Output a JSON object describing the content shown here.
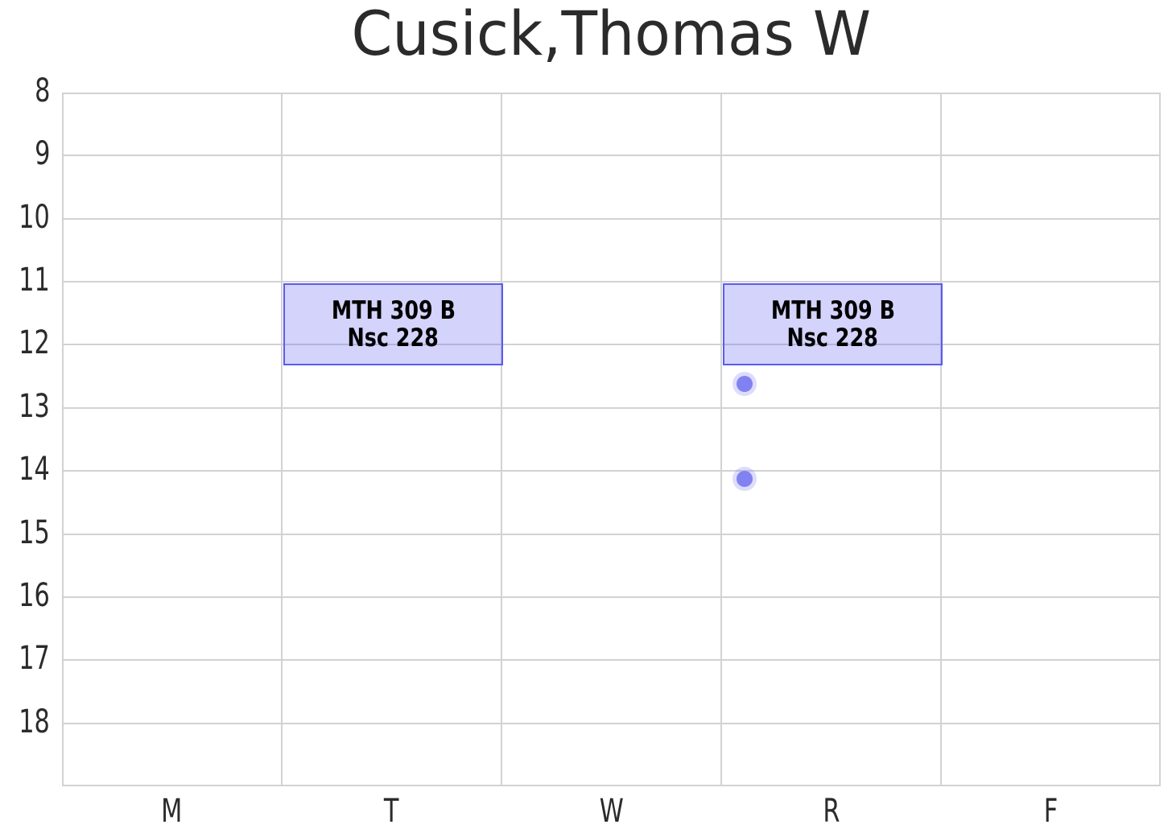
{
  "chart_data": {
    "type": "schedule",
    "title": "Cusick,Thomas W",
    "x_categories": [
      "M",
      "T",
      "W",
      "R",
      "F"
    ],
    "x_axis_meaning": "day of week (Monday through Friday, R = Thursday)",
    "y_axis": {
      "unit": "hour of day (24h)",
      "ticks": [
        8,
        9,
        10,
        11,
        12,
        13,
        14,
        15,
        16,
        17,
        18
      ],
      "ylim": [
        8,
        19
      ],
      "inverted": true,
      "grid": true
    },
    "legend": false,
    "events": [
      {
        "day": "T",
        "day_index": 1,
        "start_hour": 11.0,
        "end_hour": 12.3,
        "course": "MTH 309 B",
        "room": "Nsc 228"
      },
      {
        "day": "R",
        "day_index": 3,
        "start_hour": 11.0,
        "end_hour": 12.3,
        "course": "MTH 309 B",
        "room": "Nsc 228"
      }
    ],
    "markers": [
      {
        "day": "R",
        "x_day_units": 2.6,
        "hour": 12.6
      },
      {
        "day": "R",
        "x_day_units": 2.6,
        "hour": 14.1
      }
    ]
  },
  "colors": {
    "background": "#ffffff",
    "text": "#2b2b2b",
    "gridline": "#d2d2d2",
    "event_fill": "rgba(92,92,242,0.27)",
    "event_border": "#5b5bf0",
    "event_text": "#000000",
    "marker_fill": "#8181f1",
    "marker_halo": "rgba(129,129,241,0.28)"
  }
}
